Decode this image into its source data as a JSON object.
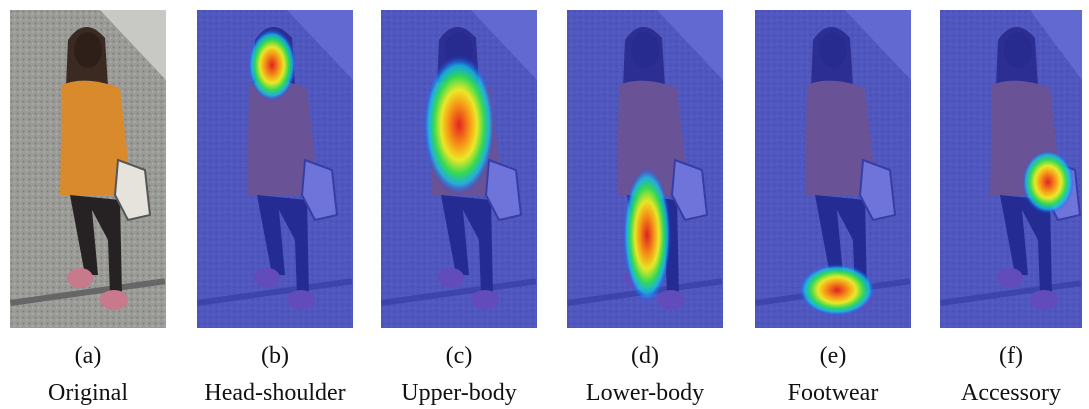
{
  "panels": [
    {
      "label": "(a)",
      "caption": "Original"
    },
    {
      "label": "(b)",
      "caption": "Head-shoulder"
    },
    {
      "label": "(c)",
      "caption": "Upper-body"
    },
    {
      "label": "(d)",
      "caption": "Lower-body"
    },
    {
      "label": "(e)",
      "caption": "Footwear"
    },
    {
      "label": "(f)",
      "caption": "Accessory"
    }
  ]
}
